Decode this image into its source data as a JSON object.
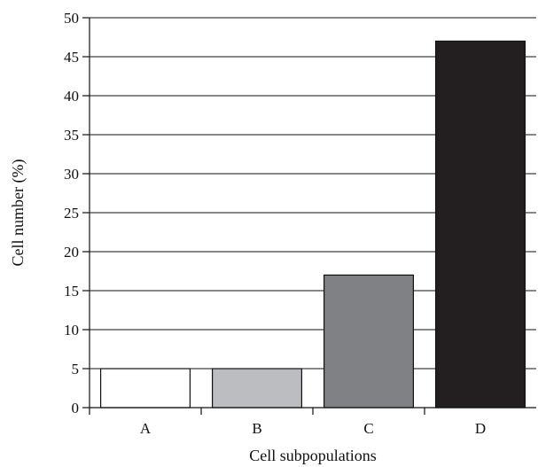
{
  "chart_data": {
    "type": "bar",
    "title": "",
    "xlabel": "Cell subpopulations",
    "ylabel": "Cell number (%)",
    "categories": [
      "A",
      "B",
      "C",
      "D"
    ],
    "values": [
      5,
      5,
      17,
      47
    ],
    "bar_colors": [
      "#ffffff",
      "#bcbdc0",
      "#808184",
      "#231f20"
    ],
    "ylim": [
      0,
      50
    ],
    "yticks": [
      0,
      5,
      10,
      15,
      20,
      25,
      30,
      35,
      40,
      45,
      50
    ],
    "ytick_labels": [
      "0",
      "5",
      "10",
      "15",
      "20",
      "25",
      "30",
      "35",
      "40",
      "45",
      "50"
    ],
    "grid": "horizontal",
    "legend": "none"
  }
}
